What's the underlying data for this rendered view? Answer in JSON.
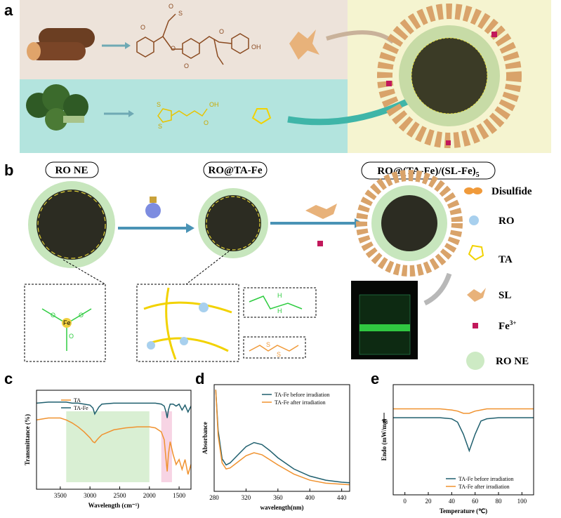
{
  "panels": {
    "a": {
      "label": "a",
      "lignin_atoms": [
        "O",
        "O",
        "S",
        "O",
        "O",
        "O",
        "OH"
      ],
      "lipoic_atoms": [
        "S",
        "S",
        "OH",
        "O"
      ]
    },
    "b": {
      "label": "b",
      "titles": [
        "RO NE",
        "RO@TA-Fe"
      ],
      "final_title": {
        "text": "RO@(TA-Fe)/(SL-Fe)",
        "subscript": "5"
      },
      "legend": [
        "Disulfide",
        "RO",
        "TA",
        "SL",
        "RO NE"
      ],
      "iron": {
        "text": "Fe",
        "superscript": "3+"
      },
      "inset_atoms": [
        "Fe",
        "O",
        "O",
        "O",
        "H",
        "H",
        "S",
        "S"
      ]
    }
  },
  "chart_data": [
    {
      "type": "line",
      "label": "c",
      "xlabel": "Wavelength (cm⁻¹)",
      "ylabel": "Transmittance (%)",
      "xlim": [
        3900,
        1300
      ],
      "ylim": [
        0,
        100
      ],
      "xticks": [
        3500,
        3000,
        2500,
        2000,
        1500
      ],
      "legend": "upper left",
      "highlights": [
        {
          "range": [
            3400,
            2000
          ],
          "color": "#d9efd3"
        },
        {
          "range": [
            1800,
            1620
          ],
          "color": "#f7d4e4"
        }
      ],
      "x": [
        3900,
        3700,
        3500,
        3400,
        3300,
        3200,
        3100,
        3000,
        2950,
        2920,
        2880,
        2850,
        2800,
        2600,
        2400,
        2200,
        2000,
        1900,
        1800,
        1750,
        1720,
        1700,
        1680,
        1650,
        1600,
        1550,
        1500,
        1450,
        1400,
        1350,
        1300
      ],
      "series": [
        {
          "name": "TA",
          "color": "#f0922f",
          "values": [
            70,
            72,
            72,
            70,
            67,
            63,
            58,
            52,
            48,
            47,
            50,
            52,
            55,
            60,
            62,
            63,
            63,
            62,
            58,
            50,
            30,
            18,
            35,
            48,
            35,
            25,
            30,
            20,
            30,
            15,
            25
          ]
        },
        {
          "name": "TA-Fe",
          "color": "#1f5f6e",
          "values": [
            87,
            88,
            88,
            88,
            87,
            87,
            86,
            85,
            82,
            76,
            80,
            83,
            86,
            87,
            87,
            87,
            87,
            87,
            86,
            84,
            78,
            72,
            80,
            86,
            86,
            84,
            86,
            80,
            85,
            78,
            84
          ]
        }
      ]
    },
    {
      "type": "line",
      "label": "d",
      "xlabel": "wavelength(nm)",
      "ylabel": "Absorbance",
      "xlim": [
        280,
        450
      ],
      "ylim": [
        0,
        1.05
      ],
      "xticks": [
        280,
        320,
        360,
        400,
        440
      ],
      "legend": "upper right",
      "x": [
        282,
        285,
        290,
        295,
        300,
        310,
        320,
        330,
        340,
        350,
        360,
        380,
        400,
        420,
        440,
        450
      ],
      "series": [
        {
          "name": "TA-Fe before irradiation",
          "color": "#1f5f6e",
          "values": [
            1.0,
            0.6,
            0.32,
            0.26,
            0.28,
            0.36,
            0.44,
            0.48,
            0.46,
            0.4,
            0.33,
            0.22,
            0.15,
            0.11,
            0.09,
            0.085
          ]
        },
        {
          "name": "TA-Fe after irradiation",
          "color": "#f0922f",
          "values": [
            1.0,
            0.55,
            0.28,
            0.22,
            0.23,
            0.29,
            0.35,
            0.38,
            0.36,
            0.31,
            0.26,
            0.17,
            0.11,
            0.08,
            0.07,
            0.065
          ]
        }
      ]
    },
    {
      "type": "line",
      "label": "e",
      "xlabel": "Temperature (℃)",
      "ylabel": "Endo (mW/mg)",
      "xlim": [
        -10,
        110
      ],
      "ylim": [
        0,
        1
      ],
      "xticks": [
        0,
        20,
        40,
        60,
        80,
        100
      ],
      "legend": "lower right",
      "x": [
        -10,
        0,
        10,
        20,
        30,
        40,
        45,
        50,
        55,
        60,
        65,
        70,
        80,
        90,
        100,
        110
      ],
      "series": [
        {
          "name": "TA-Fe before irradiation",
          "color": "#1f5f6e",
          "values": [
            0.7,
            0.7,
            0.7,
            0.7,
            0.7,
            0.69,
            0.66,
            0.55,
            0.4,
            0.55,
            0.67,
            0.69,
            0.7,
            0.7,
            0.7,
            0.7
          ]
        },
        {
          "name": "TA-Fe after irradiation",
          "color": "#f0922f",
          "values": [
            0.78,
            0.78,
            0.78,
            0.78,
            0.78,
            0.77,
            0.76,
            0.74,
            0.74,
            0.76,
            0.77,
            0.78,
            0.78,
            0.78,
            0.78,
            0.78
          ]
        }
      ]
    }
  ]
}
